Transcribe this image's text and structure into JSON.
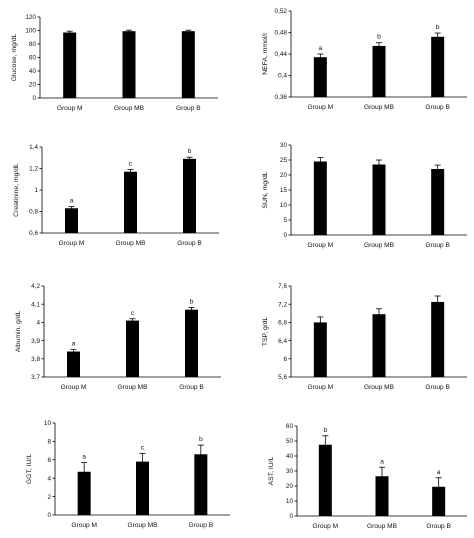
{
  "chart_data": [
    {
      "type": "bar",
      "ylabel": "Glucose, mg/dL",
      "categories": [
        "Group M",
        "Group MB",
        "Group B"
      ],
      "values": [
        97,
        99,
        99
      ],
      "errors": [
        2,
        1.5,
        1.5
      ],
      "letters": [
        "",
        "",
        ""
      ],
      "ylim": [
        0,
        120
      ],
      "yticks": [
        "0",
        "20",
        "40",
        "60",
        "80",
        "100",
        "120"
      ]
    },
    {
      "type": "bar",
      "ylabel": "NEFA, mmol/l",
      "categories": [
        "Group M",
        "Group MB",
        "Group B"
      ],
      "values": [
        0.434,
        0.455,
        0.472
      ],
      "errors": [
        0.006,
        0.006,
        0.007
      ],
      "letters": [
        "a",
        "b",
        "b"
      ],
      "ylim": [
        0.36,
        0.52
      ],
      "yticks": [
        "0,36",
        "0,4",
        "0,44",
        "0,48",
        "0,52"
      ]
    },
    {
      "type": "bar",
      "ylabel": "Creatinine, mg/dL",
      "categories": [
        "Group M",
        "Group MB",
        "Group B"
      ],
      "values": [
        0.83,
        1.17,
        1.29
      ],
      "errors": [
        0.015,
        0.02,
        0.015
      ],
      "letters": [
        "a",
        "c",
        "b"
      ],
      "ylim": [
        0.6,
        1.4
      ],
      "yticks": [
        "0,6",
        "0,8",
        "1",
        "1,2",
        "1,4"
      ]
    },
    {
      "type": "bar",
      "ylabel": "SUN, mg/dL",
      "categories": [
        "Group M",
        "Group MB",
        "Group B"
      ],
      "values": [
        24.5,
        23.5,
        22
      ],
      "errors": [
        1.3,
        1.5,
        1.3
      ],
      "letters": [
        "",
        "",
        ""
      ],
      "ylim": [
        0,
        30
      ],
      "yticks": [
        "0",
        "5",
        "10",
        "15",
        "20",
        "25",
        "30"
      ]
    },
    {
      "type": "bar",
      "ylabel": "Albumin, g/dL",
      "categories": [
        "Group M",
        "Group MB",
        "Group B"
      ],
      "values": [
        3.84,
        4.01,
        4.07
      ],
      "errors": [
        0.012,
        0.01,
        0.012
      ],
      "letters": [
        "a",
        "c",
        "b"
      ],
      "ylim": [
        3.7,
        4.2
      ],
      "yticks": [
        "3,7",
        "3,8",
        "3,9",
        "4",
        "4,1",
        "4,2"
      ]
    },
    {
      "type": "bar",
      "ylabel": "TSP, g/dL",
      "categories": [
        "Group M",
        "Group MB",
        "Group B"
      ],
      "values": [
        6.8,
        6.98,
        7.25
      ],
      "errors": [
        0.12,
        0.12,
        0.13
      ],
      "letters": [
        "",
        "",
        ""
      ],
      "ylim": [
        5.6,
        7.6
      ],
      "yticks": [
        "5,6",
        "6",
        "6,4",
        "6,8",
        "7,2",
        "7,6"
      ]
    },
    {
      "type": "bar",
      "ylabel": "GGT, IU/L",
      "categories": [
        "Group M",
        "Group MB",
        "Group B"
      ],
      "values": [
        4.7,
        5.8,
        6.6
      ],
      "errors": [
        1.0,
        0.9,
        1.0
      ],
      "letters": [
        "a",
        "c",
        "b"
      ],
      "ylim": [
        0,
        10
      ],
      "yticks": [
        "0",
        "2",
        "4",
        "6",
        "8",
        "10"
      ]
    },
    {
      "type": "bar",
      "ylabel": "AST, IU/L",
      "categories": [
        "Group M",
        "Group MB",
        "Group B"
      ],
      "values": [
        47.5,
        26.5,
        19.5
      ],
      "errors": [
        6,
        6,
        6
      ],
      "letters": [
        "b",
        "a",
        "a"
      ],
      "ylim": [
        0,
        60
      ],
      "yticks": [
        "0",
        "10",
        "20",
        "30",
        "40",
        "50",
        "60"
      ]
    }
  ]
}
